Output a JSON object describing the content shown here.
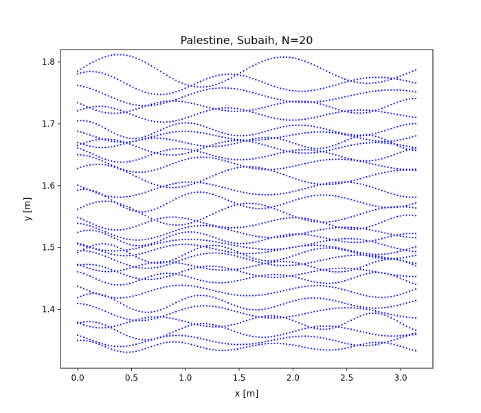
{
  "chart_data": {
    "type": "scatter",
    "title": "Palestine, Subaih, N=20",
    "xlabel": "x [m]",
    "ylabel": "y [m]",
    "xlim": [
      -0.16,
      3.3
    ],
    "ylim": [
      1.305,
      1.82
    ],
    "xticks": [
      "0.0",
      "0.5",
      "1.0",
      "1.5",
      "2.0",
      "2.5",
      "3.0"
    ],
    "yticks": [
      "1.4",
      "1.5",
      "1.6",
      "1.7",
      "1.8"
    ],
    "grid": false,
    "legend": "none",
    "marker_color": "#0000ff",
    "x_range": [
      0.0,
      3.14
    ],
    "series": [
      {
        "y0": 1.785,
        "amp": 0.02,
        "freq": 2.0,
        "phase": 0.0
      },
      {
        "y0": 1.765,
        "amp": 0.015,
        "freq": 2.4,
        "phase": 0.8
      },
      {
        "y0": 1.745,
        "amp": 0.015,
        "freq": 2.2,
        "phase": 1.6
      },
      {
        "y0": 1.728,
        "amp": 0.012,
        "freq": 3.0,
        "phase": 2.3
      },
      {
        "y0": 1.715,
        "amp": 0.01,
        "freq": 2.6,
        "phase": 0.4
      },
      {
        "y0": 1.69,
        "amp": 0.012,
        "freq": 3.2,
        "phase": 1.1
      },
      {
        "y0": 1.68,
        "amp": 0.01,
        "freq": 2.8,
        "phase": 2.0
      },
      {
        "y0": 1.67,
        "amp": 0.01,
        "freq": 3.4,
        "phase": 2.8
      },
      {
        "y0": 1.662,
        "amp": 0.01,
        "freq": 2.5,
        "phase": 0.2
      },
      {
        "y0": 1.65,
        "amp": 0.012,
        "freq": 3.0,
        "phase": 1.9
      },
      {
        "y0": 1.635,
        "amp": 0.012,
        "freq": 2.7,
        "phase": 1.3
      },
      {
        "y0": 1.615,
        "amp": 0.015,
        "freq": 2.2,
        "phase": 0.6
      },
      {
        "y0": 1.595,
        "amp": 0.015,
        "freq": 2.5,
        "phase": 2.4
      },
      {
        "y0": 1.575,
        "amp": 0.015,
        "freq": 2.9,
        "phase": 1.0
      },
      {
        "y0": 1.555,
        "amp": 0.015,
        "freq": 2.3,
        "phase": 0.3
      },
      {
        "y0": 1.54,
        "amp": 0.012,
        "freq": 3.1,
        "phase": 2.1
      },
      {
        "y0": 1.525,
        "amp": 0.012,
        "freq": 2.6,
        "phase": 1.5
      },
      {
        "y0": 1.515,
        "amp": 0.01,
        "freq": 3.3,
        "phase": 0.7
      },
      {
        "y0": 1.505,
        "amp": 0.012,
        "freq": 2.4,
        "phase": 2.7
      },
      {
        "y0": 1.497,
        "amp": 0.01,
        "freq": 2.9,
        "phase": 1.8
      },
      {
        "y0": 1.49,
        "amp": 0.012,
        "freq": 3.0,
        "phase": 0.1
      },
      {
        "y0": 1.48,
        "amp": 0.012,
        "freq": 2.5,
        "phase": 1.2
      },
      {
        "y0": 1.47,
        "amp": 0.01,
        "freq": 3.2,
        "phase": 2.5
      },
      {
        "y0": 1.46,
        "amp": 0.01,
        "freq": 2.7,
        "phase": 0.9
      },
      {
        "y0": 1.45,
        "amp": 0.01,
        "freq": 3.5,
        "phase": 1.7
      },
      {
        "y0": 1.43,
        "amp": 0.012,
        "freq": 2.8,
        "phase": 2.2
      },
      {
        "y0": 1.41,
        "amp": 0.012,
        "freq": 3.1,
        "phase": 0.5
      },
      {
        "y0": 1.395,
        "amp": 0.012,
        "freq": 2.6,
        "phase": 1.4
      },
      {
        "y0": 1.38,
        "amp": 0.012,
        "freq": 3.3,
        "phase": 2.9
      },
      {
        "y0": 1.365,
        "amp": 0.012,
        "freq": 2.9,
        "phase": 0.8
      },
      {
        "y0": 1.35,
        "amp": 0.01,
        "freq": 3.0,
        "phase": 2.0
      },
      {
        "y0": 1.34,
        "amp": 0.008,
        "freq": 3.6,
        "phase": 1.1
      }
    ]
  }
}
